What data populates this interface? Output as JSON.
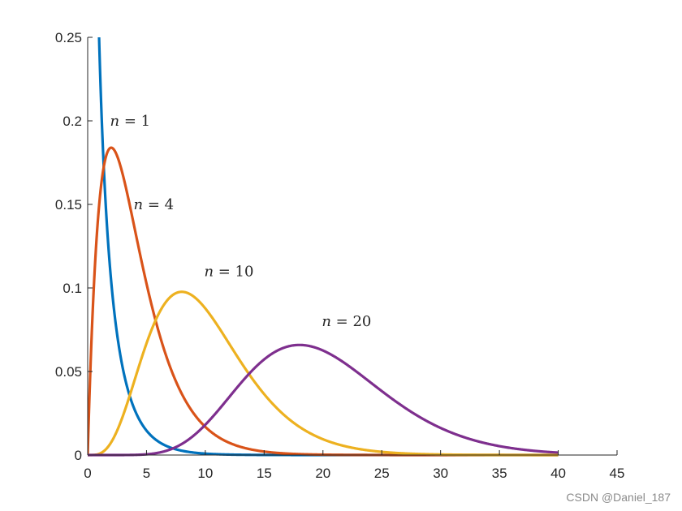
{
  "chart_data": {
    "type": "line",
    "title": "",
    "xlabel": "",
    "ylabel": "",
    "xlim": [
      0,
      45
    ],
    "ylim": [
      0,
      0.25
    ],
    "xticks": [
      0,
      5,
      10,
      15,
      20,
      25,
      30,
      35,
      40,
      45
    ],
    "xtick_labels": [
      "0",
      "5",
      "10",
      "15",
      "20",
      "25",
      "30",
      "35",
      "40",
      "45"
    ],
    "yticks": [
      0,
      0.05,
      0.1,
      0.15,
      0.2,
      0.25
    ],
    "ytick_labels": [
      "0",
      "0.05",
      "0.1",
      "0.15",
      "0.2",
      "0.25"
    ],
    "grid": false,
    "legend": "none",
    "x_range": [
      0,
      40
    ],
    "series": [
      {
        "dof": 1,
        "color": "#0072BD",
        "peak": {
          "x": 0,
          "y": "inf"
        }
      },
      {
        "dof": 4,
        "color": "#D95319",
        "peak": {
          "x": 2,
          "y": 0.184
        }
      },
      {
        "dof": 10,
        "color": "#EDB120",
        "peak": {
          "x": 8,
          "y": 0.098
        }
      },
      {
        "dof": 20,
        "color": "#7E2F8E",
        "peak": {
          "x": 18,
          "y": 0.066
        }
      }
    ],
    "annotations": [
      {
        "var": "n",
        "op": " = ",
        "value": "1",
        "x": 1.9,
        "y": 0.2
      },
      {
        "var": "n",
        "op": " = ",
        "value": "4",
        "x": 3.9,
        "y": 0.15
      },
      {
        "var": "n",
        "op": " = ",
        "value": "10",
        "x": 9.9,
        "y": 0.11
      },
      {
        "var": "n",
        "op": " = ",
        "value": "20",
        "x": 19.9,
        "y": 0.08
      }
    ]
  },
  "watermark": "CSDN @Daniel_187"
}
